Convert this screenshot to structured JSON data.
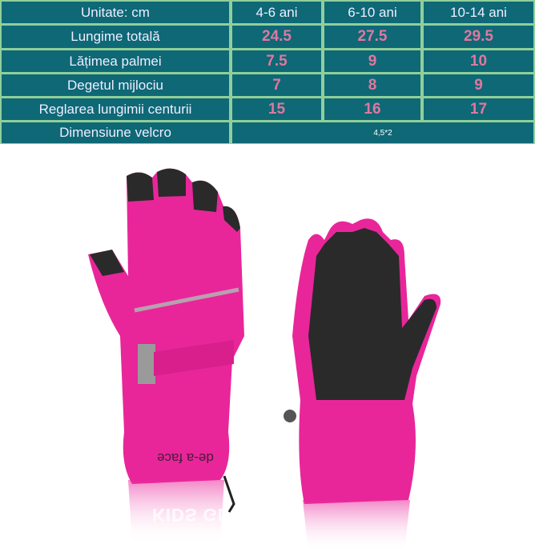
{
  "size_table": {
    "header": [
      "Unitate: cm",
      "4-6 ani",
      "6-10 ani",
      "10-14 ani"
    ],
    "rows": [
      {
        "label": "Lungime totală",
        "values": [
          "24.5",
          "27.5",
          "29.5"
        ]
      },
      {
        "label": "Lățimea palmei",
        "values": [
          "7.5",
          "9",
          "10"
        ]
      },
      {
        "label": "Degetul mijlociu",
        "values": [
          "7",
          "8",
          "9"
        ]
      },
      {
        "label": "Reglarea lungimii centurii",
        "values": [
          "15",
          "16",
          "17"
        ]
      }
    ],
    "velcro": {
      "label": "Dimensiune velcro",
      "value": "4,5*2"
    }
  },
  "product": {
    "brand_text": "de-a face",
    "reflection_text": "KIDS GLOVE",
    "colors": {
      "glove": "#e8269a",
      "palm": "#2a2a2a",
      "table_bg": "#0e6876",
      "table_border": "#8fcf9a",
      "value_text": "#e0789e"
    }
  }
}
